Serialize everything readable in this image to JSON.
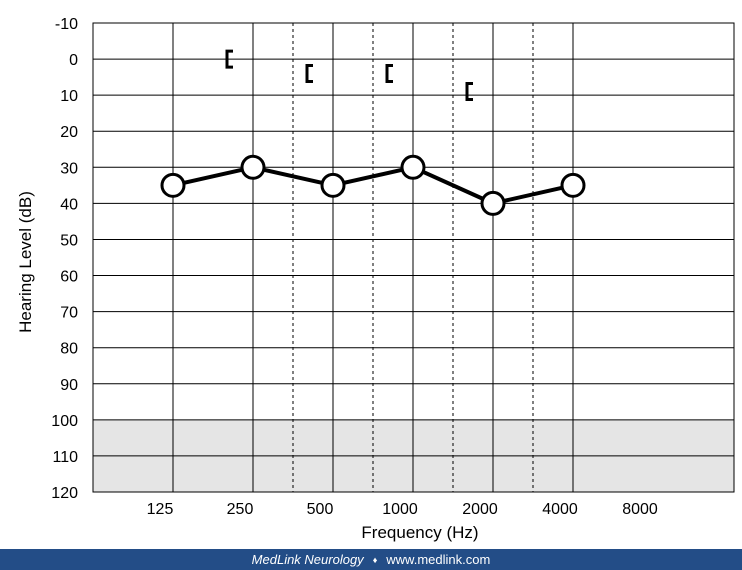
{
  "chart_data": {
    "type": "line",
    "title": "",
    "xlabel": "Frequency (Hz)",
    "ylabel": "Hearing Level (dB)",
    "x_tick_labels": [
      "125",
      "250",
      "500",
      "1000",
      "2000",
      "4000",
      "8000"
    ],
    "y_tick_labels": [
      "-10",
      "0",
      "10",
      "20",
      "30",
      "40",
      "50",
      "60",
      "70",
      "80",
      "90",
      "100",
      "110",
      "120"
    ],
    "ylim": [
      -10,
      120
    ],
    "y_inverted": true,
    "grid": true,
    "shaded_band": [
      100,
      120
    ],
    "series": [
      {
        "marker": "circle-open",
        "x": [
          "250",
          "500",
          "1000",
          "2000",
          "4000",
          "8000"
        ],
        "values": [
          35,
          30,
          35,
          30,
          40,
          35
        ]
      },
      {
        "marker": "bracket-left",
        "connected": false,
        "x": [
          "500",
          "1000",
          "2000",
          "4000"
        ],
        "values": [
          0,
          4,
          4,
          9
        ]
      }
    ]
  },
  "footer": {
    "brand": "MedLink Neurology",
    "separator": "♦",
    "url": "www.medlink.com"
  },
  "colors": {
    "footer_bg": "#234d87",
    "shade": "#e5e5e5",
    "line": "#000000"
  }
}
